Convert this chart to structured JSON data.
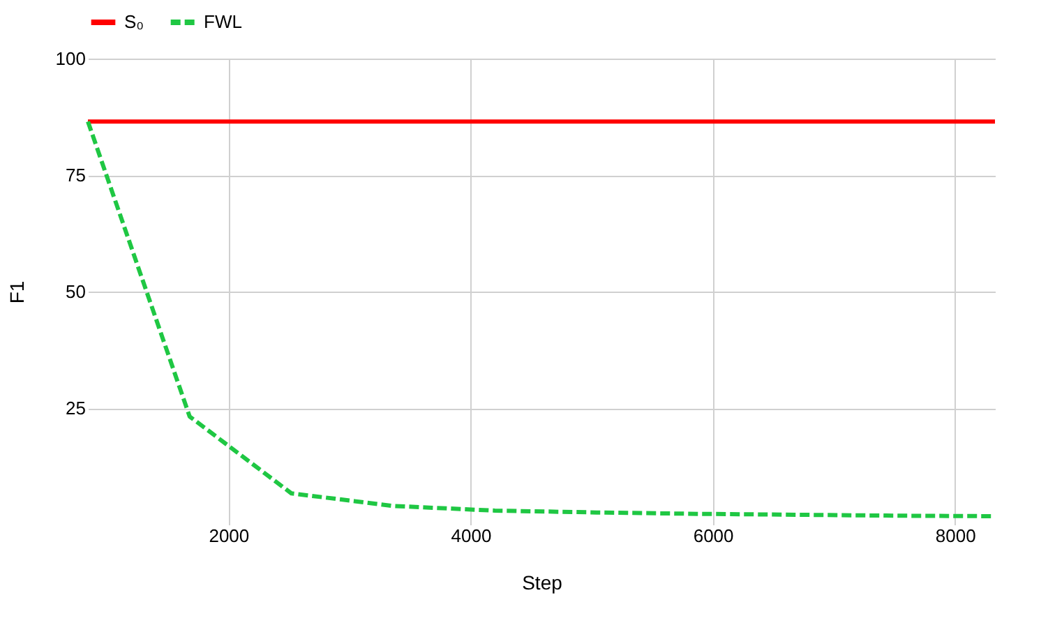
{
  "chart_data": {
    "type": "line",
    "xlabel": "Step",
    "ylabel": "F1",
    "x": [
      840,
      1680,
      2520,
      3360,
      4200,
      5040,
      5880,
      6720,
      7560,
      8330
    ],
    "series": [
      {
        "name": "S₀",
        "color": "#ff0000",
        "line_style": "solid",
        "x": [
          840,
          8330
        ],
        "values": [
          86.5,
          86.5
        ]
      },
      {
        "name": "FWL",
        "color": "#1fc743",
        "line_style": "dashed",
        "values": [
          86.5,
          23.2,
          6.7,
          4.0,
          3.0,
          2.6,
          2.3,
          2.1,
          1.9,
          1.8
        ]
      }
    ],
    "xlim": [
      840,
      8330
    ],
    "xticks": [
      2000,
      4000,
      6000,
      8000
    ],
    "ylim": [
      0,
      100
    ],
    "yticks": [
      25,
      50,
      75,
      100
    ],
    "grid": true,
    "legend": "top",
    "marker": "none"
  }
}
